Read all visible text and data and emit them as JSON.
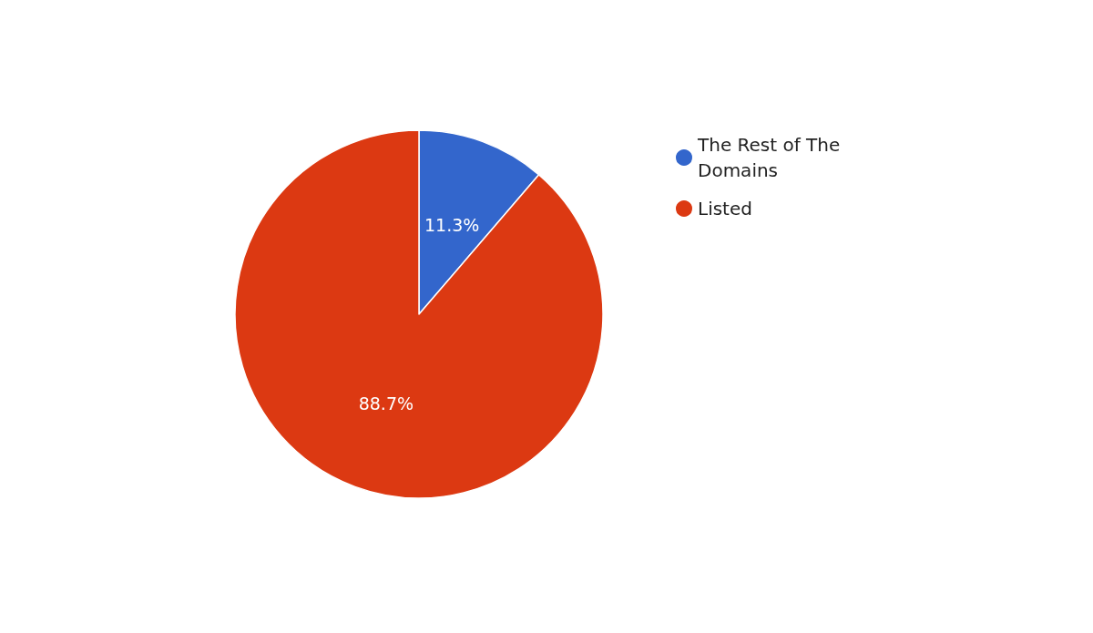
{
  "chart_data": {
    "type": "pie",
    "categories": [
      "The Rest of The Domains",
      "Listed"
    ],
    "values": [
      11.3,
      88.7
    ],
    "colors": [
      "#3366cc",
      "#dc3912"
    ],
    "value_labels": [
      "11.3%",
      "88.7%"
    ],
    "legend": "right"
  }
}
